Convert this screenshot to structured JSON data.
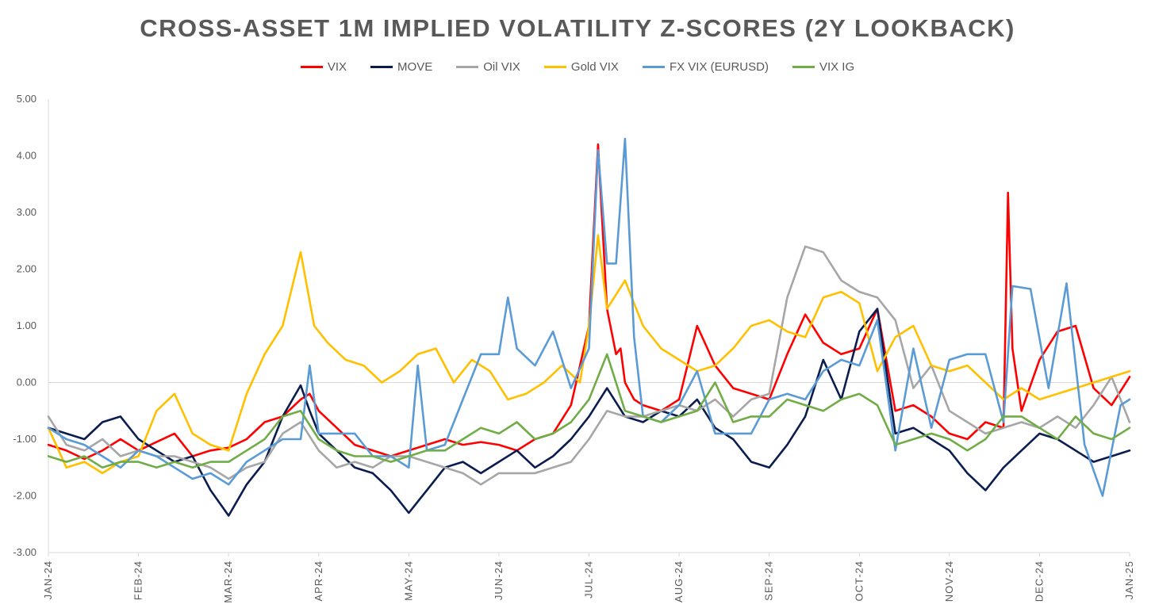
{
  "chart_data": {
    "type": "line",
    "title": "CROSS-ASSET 1M IMPLIED VOLATILITY Z-SCORES (2Y LOOKBACK)",
    "xlabel": "",
    "ylabel": "",
    "ylim": [
      -3,
      5
    ],
    "yticks": [
      "5.00",
      "4.00",
      "3.00",
      "2.00",
      "1.00",
      "0.00",
      "-1.00",
      "-2.00",
      "-3.00"
    ],
    "ytick_values": [
      5,
      4,
      3,
      2,
      1,
      0,
      -1,
      -2,
      -3
    ],
    "xlim": [
      0,
      12
    ],
    "xticks": [
      "JAN-24",
      "FEB-24",
      "MAR-24",
      "APR-24",
      "MAY-24",
      "JUN-24",
      "JUL-24",
      "AUG-24",
      "SEP-24",
      "OCT-24",
      "NOV-24",
      "DEC-24",
      "JAN-25"
    ],
    "xtick_values": [
      0,
      1,
      2,
      3,
      4,
      5,
      6,
      7,
      8,
      9,
      10,
      11,
      12
    ],
    "grid": false,
    "legend_position": "top",
    "series": [
      {
        "name": "VIX",
        "color": "#ff0000",
        "x": [
          0.0,
          0.2,
          0.4,
          0.6,
          0.8,
          1.0,
          1.2,
          1.4,
          1.6,
          1.8,
          2.0,
          2.2,
          2.4,
          2.6,
          2.8,
          2.9,
          3.0,
          3.2,
          3.4,
          3.6,
          3.8,
          4.0,
          4.2,
          4.4,
          4.6,
          4.8,
          5.0,
          5.2,
          5.4,
          5.6,
          5.8,
          6.0,
          6.1,
          6.2,
          6.3,
          6.35,
          6.4,
          6.5,
          6.6,
          6.8,
          7.0,
          7.2,
          7.4,
          7.6,
          7.8,
          8.0,
          8.2,
          8.4,
          8.6,
          8.8,
          9.0,
          9.2,
          9.4,
          9.6,
          9.8,
          10.0,
          10.2,
          10.4,
          10.6,
          10.65,
          10.7,
          10.8,
          11.0,
          11.2,
          11.4,
          11.6,
          11.8,
          12.0
        ],
        "y": [
          -1.1,
          -1.2,
          -1.35,
          -1.2,
          -1.0,
          -1.2,
          -1.05,
          -0.9,
          -1.3,
          -1.2,
          -1.15,
          -1.0,
          -0.7,
          -0.6,
          -0.3,
          -0.2,
          -0.5,
          -0.8,
          -1.1,
          -1.2,
          -1.3,
          -1.2,
          -1.1,
          -1.0,
          -1.1,
          -1.05,
          -1.1,
          -1.2,
          -1.0,
          -0.9,
          -0.4,
          1.0,
          4.2,
          1.3,
          0.5,
          0.6,
          0.0,
          -0.3,
          -0.4,
          -0.5,
          -0.3,
          1.0,
          0.3,
          -0.1,
          -0.2,
          -0.3,
          0.5,
          1.2,
          0.7,
          0.5,
          0.6,
          1.3,
          -0.5,
          -0.4,
          -0.6,
          -0.9,
          -1.0,
          -0.7,
          -0.8,
          3.35,
          0.6,
          -0.5,
          0.4,
          0.9,
          1.0,
          -0.1,
          -0.4,
          0.1
        ]
      },
      {
        "name": "MOVE",
        "color": "#0b1d4f",
        "x": [
          0.0,
          0.2,
          0.4,
          0.6,
          0.8,
          1.0,
          1.2,
          1.4,
          1.6,
          1.8,
          2.0,
          2.2,
          2.4,
          2.6,
          2.8,
          2.9,
          3.0,
          3.2,
          3.4,
          3.6,
          3.8,
          4.0,
          4.2,
          4.4,
          4.6,
          4.8,
          5.0,
          5.2,
          5.4,
          5.6,
          5.8,
          6.0,
          6.2,
          6.4,
          6.6,
          6.8,
          7.0,
          7.2,
          7.4,
          7.6,
          7.8,
          8.0,
          8.2,
          8.4,
          8.6,
          8.8,
          9.0,
          9.2,
          9.4,
          9.6,
          9.8,
          10.0,
          10.2,
          10.4,
          10.6,
          10.8,
          11.0,
          11.2,
          11.4,
          11.6,
          11.8,
          12.0
        ],
        "y": [
          -0.8,
          -0.9,
          -1.0,
          -0.7,
          -0.6,
          -1.0,
          -1.2,
          -1.4,
          -1.3,
          -1.9,
          -2.35,
          -1.8,
          -1.4,
          -0.6,
          -0.05,
          -0.5,
          -0.9,
          -1.2,
          -1.5,
          -1.6,
          -1.9,
          -2.3,
          -1.9,
          -1.5,
          -1.4,
          -1.6,
          -1.4,
          -1.2,
          -1.5,
          -1.3,
          -1.0,
          -0.6,
          -0.1,
          -0.6,
          -0.7,
          -0.5,
          -0.6,
          -0.3,
          -0.8,
          -1.0,
          -1.4,
          -1.5,
          -1.1,
          -0.6,
          0.4,
          -0.3,
          0.9,
          1.3,
          -0.9,
          -0.8,
          -1.0,
          -1.2,
          -1.6,
          -1.9,
          -1.5,
          -1.2,
          -0.9,
          -1.0,
          -1.2,
          -1.4,
          -1.3,
          -1.2
        ]
      },
      {
        "name": "Oil VIX",
        "color": "#a6a6a6",
        "x": [
          0.0,
          0.2,
          0.4,
          0.6,
          0.8,
          1.0,
          1.2,
          1.4,
          1.6,
          1.8,
          2.0,
          2.2,
          2.4,
          2.6,
          2.8,
          3.0,
          3.2,
          3.4,
          3.6,
          3.8,
          4.0,
          4.2,
          4.4,
          4.6,
          4.8,
          5.0,
          5.2,
          5.4,
          5.6,
          5.8,
          6.0,
          6.2,
          6.4,
          6.6,
          6.8,
          7.0,
          7.2,
          7.4,
          7.6,
          7.8,
          8.0,
          8.2,
          8.4,
          8.6,
          8.8,
          9.0,
          9.2,
          9.4,
          9.6,
          9.8,
          10.0,
          10.2,
          10.4,
          10.6,
          10.8,
          11.0,
          11.2,
          11.4,
          11.6,
          11.8,
          12.0
        ],
        "y": [
          -0.6,
          -1.1,
          -1.2,
          -1.0,
          -1.3,
          -1.2,
          -1.3,
          -1.3,
          -1.4,
          -1.5,
          -1.7,
          -1.5,
          -1.4,
          -0.9,
          -0.7,
          -1.2,
          -1.5,
          -1.4,
          -1.5,
          -1.3,
          -1.3,
          -1.4,
          -1.5,
          -1.6,
          -1.8,
          -1.6,
          -1.6,
          -1.6,
          -1.5,
          -1.4,
          -1.0,
          -0.5,
          -0.6,
          -0.6,
          -0.5,
          -0.4,
          -0.5,
          -0.3,
          -0.6,
          -0.3,
          -0.2,
          1.5,
          2.4,
          2.3,
          1.8,
          1.6,
          1.5,
          1.1,
          -0.1,
          0.3,
          -0.5,
          -0.7,
          -0.9,
          -0.8,
          -0.7,
          -0.8,
          -0.6,
          -0.8,
          -0.4,
          0.1,
          -0.7
        ]
      },
      {
        "name": "Gold VIX",
        "color": "#ffc000",
        "x": [
          0.0,
          0.2,
          0.4,
          0.6,
          0.8,
          1.0,
          1.2,
          1.4,
          1.6,
          1.8,
          2.0,
          2.2,
          2.4,
          2.6,
          2.8,
          2.95,
          3.1,
          3.3,
          3.5,
          3.7,
          3.9,
          4.1,
          4.3,
          4.5,
          4.7,
          4.9,
          5.1,
          5.3,
          5.5,
          5.7,
          5.9,
          6.0,
          6.1,
          6.2,
          6.4,
          6.6,
          6.8,
          7.0,
          7.2,
          7.4,
          7.6,
          7.8,
          8.0,
          8.2,
          8.4,
          8.6,
          8.8,
          9.0,
          9.2,
          9.4,
          9.6,
          9.8,
          10.0,
          10.2,
          10.4,
          10.6,
          10.8,
          11.0,
          11.2,
          11.4,
          11.6,
          11.8,
          12.0
        ],
        "y": [
          -0.8,
          -1.5,
          -1.4,
          -1.6,
          -1.4,
          -1.3,
          -0.5,
          -0.2,
          -0.9,
          -1.1,
          -1.2,
          -0.2,
          0.5,
          1.0,
          2.3,
          1.0,
          0.7,
          0.4,
          0.3,
          0.0,
          0.2,
          0.5,
          0.6,
          0.0,
          0.4,
          0.2,
          -0.3,
          -0.2,
          0.0,
          0.3,
          0.0,
          1.0,
          2.6,
          1.3,
          1.8,
          1.0,
          0.6,
          0.4,
          0.2,
          0.3,
          0.6,
          1.0,
          1.1,
          0.9,
          0.8,
          1.5,
          1.6,
          1.4,
          0.2,
          0.8,
          1.0,
          0.3,
          0.2,
          0.3,
          0.0,
          -0.3,
          -0.1,
          -0.3,
          -0.2,
          -0.1,
          0.0,
          0.1,
          0.2
        ]
      },
      {
        "name": "FX VIX (EURUSD)",
        "color": "#5b9bd5",
        "x": [
          0.0,
          0.2,
          0.4,
          0.6,
          0.8,
          1.0,
          1.2,
          1.4,
          1.6,
          1.8,
          2.0,
          2.2,
          2.4,
          2.6,
          2.8,
          2.9,
          3.0,
          3.2,
          3.4,
          3.6,
          3.8,
          4.0,
          4.1,
          4.2,
          4.4,
          4.6,
          4.8,
          5.0,
          5.1,
          5.2,
          5.4,
          5.6,
          5.8,
          6.0,
          6.1,
          6.2,
          6.3,
          6.4,
          6.5,
          6.6,
          6.8,
          7.0,
          7.2,
          7.4,
          7.6,
          7.8,
          8.0,
          8.2,
          8.4,
          8.6,
          8.8,
          9.0,
          9.2,
          9.4,
          9.6,
          9.8,
          10.0,
          10.2,
          10.4,
          10.6,
          10.7,
          10.9,
          11.1,
          11.3,
          11.5,
          11.7,
          11.9,
          12.0
        ],
        "y": [
          -0.8,
          -1.0,
          -1.1,
          -1.3,
          -1.5,
          -1.2,
          -1.3,
          -1.5,
          -1.7,
          -1.6,
          -1.8,
          -1.4,
          -1.2,
          -1.0,
          -1.0,
          0.3,
          -0.9,
          -0.9,
          -0.9,
          -1.3,
          -1.3,
          -1.5,
          0.3,
          -1.2,
          -1.1,
          -0.3,
          0.5,
          0.5,
          1.5,
          0.6,
          0.3,
          0.9,
          -0.1,
          0.6,
          4.1,
          2.1,
          2.1,
          4.3,
          0.8,
          -0.6,
          -0.7,
          -0.4,
          0.2,
          -0.9,
          -0.9,
          -0.9,
          -0.3,
          -0.2,
          -0.3,
          0.2,
          0.4,
          0.3,
          1.1,
          -1.2,
          0.6,
          -0.8,
          0.4,
          0.5,
          0.5,
          -0.7,
          1.7,
          1.65,
          -0.1,
          1.75,
          -1.1,
          -2.0,
          -0.4,
          -0.3
        ]
      },
      {
        "name": "VIX IG",
        "color": "#70ad47",
        "x": [
          0.0,
          0.2,
          0.4,
          0.6,
          0.8,
          1.0,
          1.2,
          1.4,
          1.6,
          1.8,
          2.0,
          2.2,
          2.4,
          2.6,
          2.8,
          3.0,
          3.2,
          3.4,
          3.6,
          3.8,
          4.0,
          4.2,
          4.4,
          4.6,
          4.8,
          5.0,
          5.2,
          5.4,
          5.6,
          5.8,
          6.0,
          6.2,
          6.4,
          6.6,
          6.8,
          7.0,
          7.2,
          7.4,
          7.6,
          7.8,
          8.0,
          8.2,
          8.4,
          8.6,
          8.8,
          9.0,
          9.2,
          9.4,
          9.6,
          9.8,
          10.0,
          10.2,
          10.4,
          10.6,
          10.8,
          11.0,
          11.2,
          11.4,
          11.6,
          11.8,
          12.0
        ],
        "y": [
          -1.3,
          -1.4,
          -1.3,
          -1.5,
          -1.4,
          -1.4,
          -1.5,
          -1.4,
          -1.5,
          -1.4,
          -1.4,
          -1.2,
          -1.0,
          -0.6,
          -0.5,
          -1.0,
          -1.2,
          -1.3,
          -1.3,
          -1.4,
          -1.3,
          -1.2,
          -1.2,
          -1.0,
          -0.8,
          -0.9,
          -0.7,
          -1.0,
          -0.9,
          -0.7,
          -0.3,
          0.5,
          -0.5,
          -0.6,
          -0.7,
          -0.6,
          -0.5,
          0.0,
          -0.7,
          -0.6,
          -0.6,
          -0.3,
          -0.4,
          -0.5,
          -0.3,
          -0.2,
          -0.4,
          -1.1,
          -1.0,
          -0.9,
          -1.0,
          -1.2,
          -1.0,
          -0.6,
          -0.6,
          -0.8,
          -1.0,
          -0.6,
          -0.9,
          -1.0,
          -0.8
        ]
      }
    ]
  }
}
